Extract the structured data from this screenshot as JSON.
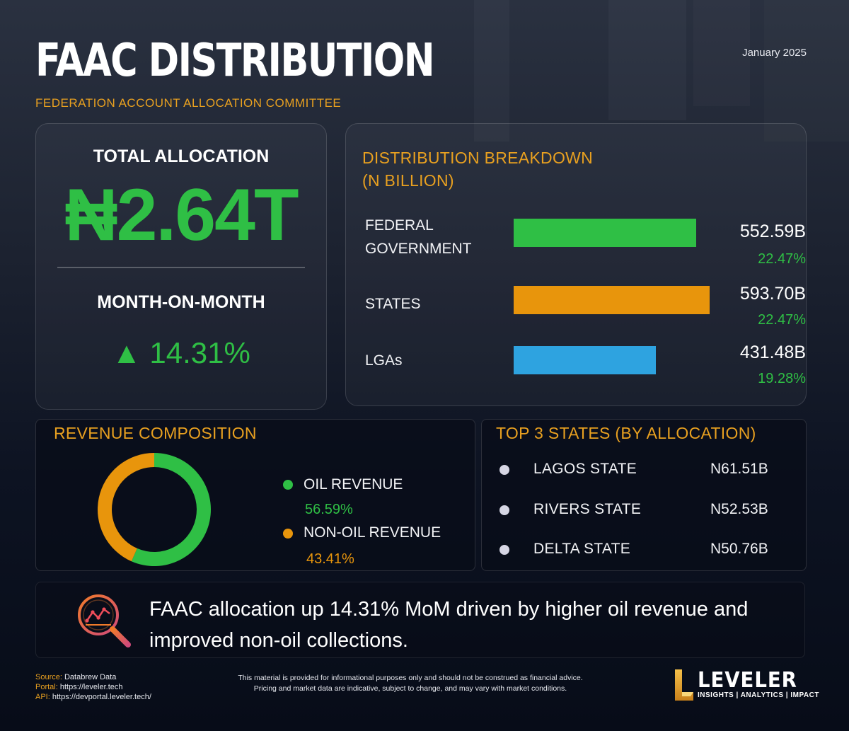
{
  "header": {
    "title": "FAAC DISTRIBUTION",
    "subtitle": "FEDERATION ACCOUNT ALLOCATION COMMITTEE",
    "date": "January 2025"
  },
  "total": {
    "label": "TOTAL ALLOCATION",
    "value": "₦2.64T",
    "mom_label": "MONTH-ON-MONTH",
    "mom_value": "▲ 14.31%"
  },
  "colors": {
    "accent": "#e8a020",
    "green": "#2fbf45",
    "blue": "#2ea3e0"
  },
  "chart_data": [
    {
      "type": "bar",
      "orientation": "horizontal",
      "title": "DISTRIBUTION BREAKDOWN (N BILLION)",
      "categories": [
        "FEDERAL GOVERNMENT",
        "STATES",
        "LGAs"
      ],
      "category_lines": [
        [
          "FEDERAL",
          "GOVERNMENT"
        ],
        [
          "STATES"
        ],
        [
          "LGAs"
        ]
      ],
      "values": [
        552.59,
        593.7,
        431.48
      ],
      "value_labels": [
        "552.59B",
        "593.70B",
        "431.48B"
      ],
      "percent_labels": [
        "22.47%",
        "22.47%",
        "19.28%"
      ],
      "colors": [
        "#2fbf45",
        "#e8950c",
        "#2ea3e0"
      ],
      "xlim": [
        0,
        600
      ]
    },
    {
      "type": "pie",
      "style": "donut",
      "title": "REVENUE COMPOSITION",
      "categories": [
        "OIL REVENUE",
        "NON-OIL REVENUE"
      ],
      "values": [
        56.59,
        43.41
      ],
      "percent_labels": [
        "56.59%",
        "43.41%"
      ],
      "colors": [
        "#2fbf45",
        "#e8950c"
      ]
    }
  ],
  "top_states": {
    "title": "TOP 3 STATES (BY ALLOCATION)",
    "items": [
      {
        "name": "LAGOS STATE",
        "value": "N61.51B"
      },
      {
        "name": "RIVERS STATE",
        "value": "N52.53B"
      },
      {
        "name": "DELTA STATE",
        "value": "N50.76B"
      }
    ]
  },
  "note": {
    "icon": "magnifier-chart-icon",
    "text": "FAAC allocation up 14.31% MoM driven by higher oil revenue and improved non-oil collections."
  },
  "footer": {
    "source_label": "Source:",
    "source_value": "Databrew Data",
    "portal_label": "Portal:",
    "portal_value": "https://leveler.tech",
    "api_label": "API:",
    "api_value": "https://devportal.leveler.tech/",
    "disclaimer_1": "This material is provided for informational purposes only and should not be construed as financial advice.",
    "disclaimer_2": "Pricing and market data are indicative, subject to change, and may vary with market conditions."
  },
  "logo": {
    "word": "LEVELER",
    "tagline": "INSIGHTS | ANALYTICS | IMPACT"
  }
}
